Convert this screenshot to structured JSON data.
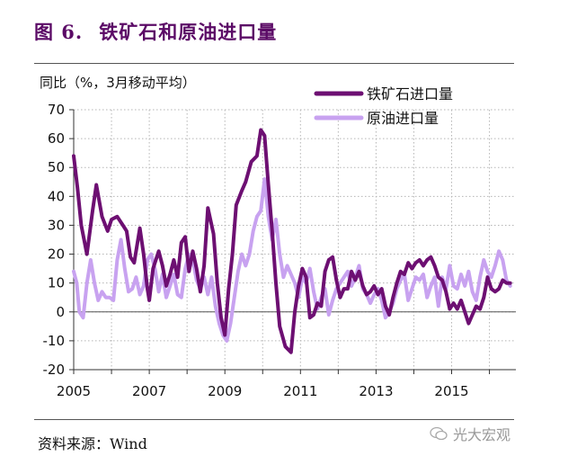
{
  "header": {
    "figure_no": "图 6.",
    "title": "铁矿石和原油进口量"
  },
  "source": "资料来源：Wind",
  "watermark": "光大宏观",
  "colors": {
    "iron_ore": "#6d0f72",
    "crude_oil": "#c8a2f0",
    "title": "#5b0a66"
  },
  "chart_data": {
    "type": "line",
    "ylabel": "同比（%，3月移动平均）",
    "ylim": [
      -20,
      70
    ],
    "yticks": [
      -20,
      -10,
      0,
      10,
      20,
      30,
      40,
      50,
      60,
      70
    ],
    "xlim": [
      2005.0,
      2016.7
    ],
    "xticks": [
      2005,
      2007,
      2009,
      2011,
      2013,
      2015
    ],
    "grid": "dotted",
    "legend": "top-right",
    "series": [
      {
        "name": "铁矿石进口量",
        "points": [
          [
            2005.0,
            54
          ],
          [
            2005.1,
            43
          ],
          [
            2005.2,
            30
          ],
          [
            2005.35,
            20
          ],
          [
            2005.5,
            35
          ],
          [
            2005.6,
            44
          ],
          [
            2005.75,
            33
          ],
          [
            2005.9,
            28
          ],
          [
            2006.0,
            32
          ],
          [
            2006.15,
            33
          ],
          [
            2006.3,
            30
          ],
          [
            2006.4,
            28
          ],
          [
            2006.5,
            19
          ],
          [
            2006.6,
            17
          ],
          [
            2006.75,
            29
          ],
          [
            2006.85,
            20
          ],
          [
            2006.95,
            8
          ],
          [
            2007.0,
            4
          ],
          [
            2007.1,
            15
          ],
          [
            2007.25,
            21
          ],
          [
            2007.35,
            16
          ],
          [
            2007.45,
            9
          ],
          [
            2007.55,
            13
          ],
          [
            2007.65,
            18
          ],
          [
            2007.75,
            12
          ],
          [
            2007.85,
            24
          ],
          [
            2007.95,
            26
          ],
          [
            2008.05,
            14
          ],
          [
            2008.15,
            21
          ],
          [
            2008.25,
            15
          ],
          [
            2008.35,
            7
          ],
          [
            2008.45,
            16
          ],
          [
            2008.55,
            36
          ],
          [
            2008.7,
            27
          ],
          [
            2008.8,
            10
          ],
          [
            2008.9,
            -2
          ],
          [
            2009.0,
            -8
          ],
          [
            2009.1,
            8
          ],
          [
            2009.2,
            20
          ],
          [
            2009.3,
            37
          ],
          [
            2009.45,
            42
          ],
          [
            2009.55,
            45
          ],
          [
            2009.7,
            52
          ],
          [
            2009.85,
            54
          ],
          [
            2009.95,
            63
          ],
          [
            2010.05,
            61
          ],
          [
            2010.15,
            44
          ],
          [
            2010.25,
            28
          ],
          [
            2010.35,
            10
          ],
          [
            2010.45,
            -5
          ],
          [
            2010.6,
            -12
          ],
          [
            2010.75,
            -14
          ],
          [
            2010.85,
            0
          ],
          [
            2010.95,
            9
          ],
          [
            2011.05,
            15
          ],
          [
            2011.15,
            12
          ],
          [
            2011.25,
            -2
          ],
          [
            2011.35,
            -1
          ],
          [
            2011.45,
            3
          ],
          [
            2011.55,
            2
          ],
          [
            2011.65,
            14
          ],
          [
            2011.75,
            18
          ],
          [
            2011.85,
            19
          ],
          [
            2011.95,
            11
          ],
          [
            2012.05,
            5
          ],
          [
            2012.15,
            8
          ],
          [
            2012.25,
            8
          ],
          [
            2012.35,
            14
          ],
          [
            2012.45,
            11
          ],
          [
            2012.55,
            14
          ],
          [
            2012.65,
            9
          ],
          [
            2012.75,
            6
          ],
          [
            2012.85,
            7
          ],
          [
            2012.95,
            9
          ],
          [
            2013.05,
            6
          ],
          [
            2013.15,
            8
          ],
          [
            2013.25,
            2
          ],
          [
            2013.35,
            -1
          ],
          [
            2013.45,
            5
          ],
          [
            2013.55,
            10
          ],
          [
            2013.65,
            14
          ],
          [
            2013.75,
            13
          ],
          [
            2013.85,
            17
          ],
          [
            2013.95,
            15
          ],
          [
            2014.05,
            17
          ],
          [
            2014.15,
            18
          ],
          [
            2014.25,
            16
          ],
          [
            2014.35,
            18
          ],
          [
            2014.45,
            19
          ],
          [
            2014.55,
            16
          ],
          [
            2014.65,
            12
          ],
          [
            2014.75,
            11
          ],
          [
            2014.85,
            7
          ],
          [
            2014.95,
            1
          ],
          [
            2015.05,
            3
          ],
          [
            2015.15,
            1
          ],
          [
            2015.25,
            4
          ],
          [
            2015.35,
            0
          ],
          [
            2015.45,
            -4
          ],
          [
            2015.55,
            -1
          ],
          [
            2015.65,
            2
          ],
          [
            2015.75,
            1
          ],
          [
            2015.85,
            5
          ],
          [
            2015.95,
            12
          ],
          [
            2016.05,
            8
          ],
          [
            2016.15,
            7
          ],
          [
            2016.25,
            8
          ],
          [
            2016.35,
            11
          ],
          [
            2016.45,
            10
          ],
          [
            2016.55,
            10
          ]
        ]
      },
      {
        "name": "原油进口量",
        "points": [
          [
            2005.0,
            14
          ],
          [
            2005.08,
            10
          ],
          [
            2005.15,
            0
          ],
          [
            2005.25,
            -2
          ],
          [
            2005.35,
            10
          ],
          [
            2005.45,
            18
          ],
          [
            2005.55,
            10
          ],
          [
            2005.65,
            4
          ],
          [
            2005.75,
            7
          ],
          [
            2005.85,
            5
          ],
          [
            2005.95,
            5
          ],
          [
            2006.05,
            4
          ],
          [
            2006.15,
            18
          ],
          [
            2006.25,
            25
          ],
          [
            2006.35,
            15
          ],
          [
            2006.45,
            7
          ],
          [
            2006.55,
            8
          ],
          [
            2006.65,
            12
          ],
          [
            2006.75,
            6
          ],
          [
            2006.85,
            9
          ],
          [
            2006.95,
            18
          ],
          [
            2007.05,
            20
          ],
          [
            2007.15,
            15
          ],
          [
            2007.25,
            7
          ],
          [
            2007.35,
            13
          ],
          [
            2007.45,
            5
          ],
          [
            2007.55,
            9
          ],
          [
            2007.65,
            13
          ],
          [
            2007.75,
            6
          ],
          [
            2007.85,
            5
          ],
          [
            2007.95,
            15
          ],
          [
            2008.05,
            20
          ],
          [
            2008.15,
            18
          ],
          [
            2008.25,
            11
          ],
          [
            2008.35,
            8
          ],
          [
            2008.45,
            12
          ],
          [
            2008.55,
            6
          ],
          [
            2008.65,
            12
          ],
          [
            2008.75,
            2
          ],
          [
            2008.85,
            -4
          ],
          [
            2008.95,
            -8
          ],
          [
            2009.05,
            -10
          ],
          [
            2009.15,
            -4
          ],
          [
            2009.25,
            5
          ],
          [
            2009.35,
            14
          ],
          [
            2009.45,
            20
          ],
          [
            2009.55,
            16
          ],
          [
            2009.65,
            20
          ],
          [
            2009.75,
            28
          ],
          [
            2009.85,
            33
          ],
          [
            2009.95,
            35
          ],
          [
            2010.05,
            46
          ],
          [
            2010.15,
            33
          ],
          [
            2010.25,
            25
          ],
          [
            2010.35,
            32
          ],
          [
            2010.45,
            20
          ],
          [
            2010.55,
            12
          ],
          [
            2010.65,
            16
          ],
          [
            2010.75,
            13
          ],
          [
            2010.85,
            10
          ],
          [
            2010.95,
            5
          ],
          [
            2011.05,
            12
          ],
          [
            2011.15,
            10
          ],
          [
            2011.25,
            15
          ],
          [
            2011.35,
            7
          ],
          [
            2011.45,
            1
          ],
          [
            2011.55,
            5
          ],
          [
            2011.65,
            8
          ],
          [
            2011.75,
            -1
          ],
          [
            2011.85,
            4
          ],
          [
            2011.95,
            8
          ],
          [
            2012.05,
            10
          ],
          [
            2012.15,
            12
          ],
          [
            2012.25,
            14
          ],
          [
            2012.35,
            9
          ],
          [
            2012.45,
            12
          ],
          [
            2012.55,
            16
          ],
          [
            2012.65,
            8
          ],
          [
            2012.75,
            6
          ],
          [
            2012.85,
            3
          ],
          [
            2012.95,
            6
          ],
          [
            2013.05,
            8
          ],
          [
            2013.15,
            4
          ],
          [
            2013.25,
            -2
          ],
          [
            2013.35,
            0
          ],
          [
            2013.45,
            3
          ],
          [
            2013.55,
            8
          ],
          [
            2013.65,
            11
          ],
          [
            2013.75,
            13
          ],
          [
            2013.85,
            4
          ],
          [
            2013.95,
            8
          ],
          [
            2014.05,
            12
          ],
          [
            2014.15,
            11
          ],
          [
            2014.25,
            13
          ],
          [
            2014.35,
            5
          ],
          [
            2014.45,
            9
          ],
          [
            2014.55,
            12
          ],
          [
            2014.65,
            2
          ],
          [
            2014.75,
            12
          ],
          [
            2014.85,
            8
          ],
          [
            2014.95,
            16
          ],
          [
            2015.05,
            9
          ],
          [
            2015.15,
            8
          ],
          [
            2015.25,
            13
          ],
          [
            2015.35,
            9
          ],
          [
            2015.45,
            14
          ],
          [
            2015.55,
            7
          ],
          [
            2015.65,
            4
          ],
          [
            2015.75,
            12
          ],
          [
            2015.85,
            18
          ],
          [
            2015.95,
            14
          ],
          [
            2016.05,
            12
          ],
          [
            2016.15,
            16
          ],
          [
            2016.25,
            21
          ],
          [
            2016.35,
            18
          ],
          [
            2016.45,
            11
          ],
          [
            2016.55,
            9
          ]
        ]
      }
    ]
  }
}
